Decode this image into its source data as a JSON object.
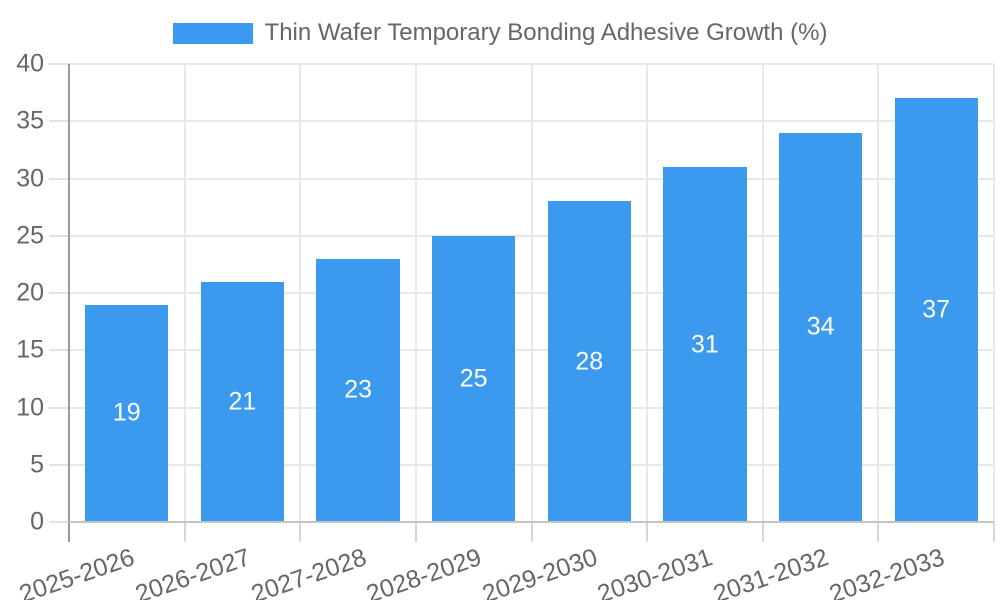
{
  "chart_data": {
    "type": "bar",
    "title": "Thin Wafer Temporary Bonding Adhesive Growth (%)",
    "series_name": "Thin Wafer Temporary Bonding Adhesive Growth (%)",
    "categories": [
      "2025-2026",
      "2026-2027",
      "2027-2028",
      "2028-2029",
      "2029-2030",
      "2030-2031",
      "2031-2032",
      "2032-2033"
    ],
    "values": [
      19,
      21,
      23,
      25,
      28,
      31,
      34,
      37
    ],
    "yticks": [
      0,
      5,
      10,
      15,
      20,
      25,
      30,
      35,
      40
    ],
    "ylim": [
      0,
      40
    ],
    "xlabel": "",
    "ylabel": "",
    "legend_position": "top",
    "grid": true,
    "x_label_rotation_deg": -19,
    "bar_color": "#3b99ee",
    "value_label_color": "#ffffff",
    "axis_text_color": "#666666"
  }
}
